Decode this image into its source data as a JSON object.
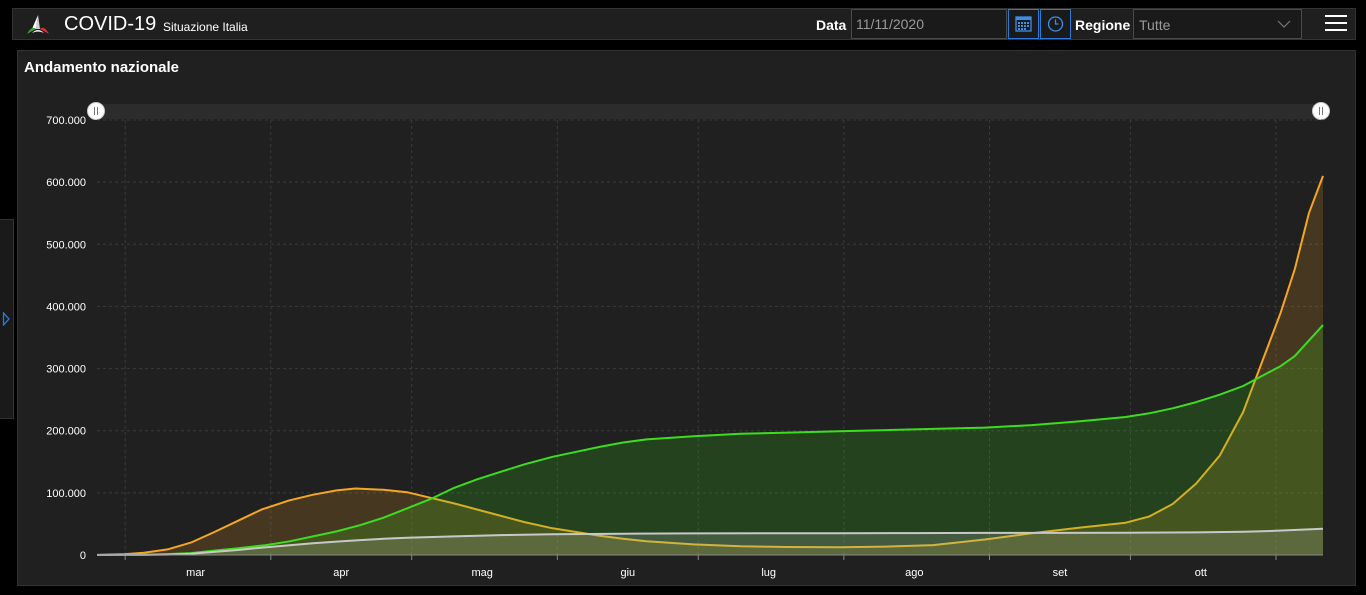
{
  "header": {
    "app_title": "COVID-19",
    "app_subtitle": "Situazione Italia",
    "date_label": "Data",
    "date_value": "11/11/2020",
    "region_label": "Regione",
    "region_value": "Tutte"
  },
  "icons": {
    "logo": "italy-tricolor-logo-icon",
    "calendar": "calendar-icon",
    "clock": "clock-icon",
    "dropdown": "chevron-down-icon",
    "menu": "hamburger-menu-icon",
    "side_toggle": "chevron-right-icon"
  },
  "colors": {
    "orange": "#f5a623",
    "green": "#3ddc1e",
    "gray": "#c8c8c8",
    "accent": "#2b7bd6"
  },
  "panel": {
    "title": "Andamento nazionale"
  },
  "chart_data": {
    "type": "area",
    "title": "",
    "xlabel": "",
    "ylabel": "",
    "ylim": [
      0,
      700000
    ],
    "yticks": [
      0,
      100000,
      200000,
      300000,
      400000,
      500000,
      600000,
      700000
    ],
    "ytick_labels": [
      "0",
      "100.000",
      "200.000",
      "300.000",
      "400.000",
      "500.000",
      "600.000",
      "700.000"
    ],
    "xlim": [
      "2020-02-24",
      "2020-11-11"
    ],
    "month_labels": [
      {
        "label": "mar",
        "date": "2020-03-16"
      },
      {
        "label": "apr",
        "date": "2020-04-16"
      },
      {
        "label": "mag",
        "date": "2020-05-16"
      },
      {
        "label": "giu",
        "date": "2020-06-16"
      },
      {
        "label": "lug",
        "date": "2020-07-16"
      },
      {
        "label": "ago",
        "date": "2020-08-16"
      },
      {
        "label": "set",
        "date": "2020-09-16"
      },
      {
        "label": "ott",
        "date": "2020-10-16"
      }
    ],
    "gridlines": [
      "2020-03-01",
      "2020-04-01",
      "2020-05-01",
      "2020-06-01",
      "2020-07-01",
      "2020-08-01",
      "2020-09-01",
      "2020-10-01",
      "2020-11-01"
    ],
    "grid": true,
    "legend": "none",
    "range_selector": true,
    "series": [
      {
        "color": "#f5a623",
        "points": [
          [
            "2020-02-24",
            200
          ],
          [
            "2020-03-01",
            1500
          ],
          [
            "2020-03-05",
            3500
          ],
          [
            "2020-03-10",
            9000
          ],
          [
            "2020-03-15",
            20000
          ],
          [
            "2020-03-20",
            37000
          ],
          [
            "2020-03-25",
            55000
          ],
          [
            "2020-03-30",
            73000
          ],
          [
            "2020-04-05",
            88000
          ],
          [
            "2020-04-10",
            97000
          ],
          [
            "2020-04-15",
            104000
          ],
          [
            "2020-04-19",
            107000
          ],
          [
            "2020-04-25",
            105000
          ],
          [
            "2020-04-30",
            101000
          ],
          [
            "2020-05-05",
            92000
          ],
          [
            "2020-05-10",
            83000
          ],
          [
            "2020-05-15",
            73000
          ],
          [
            "2020-05-20",
            63000
          ],
          [
            "2020-05-25",
            53000
          ],
          [
            "2020-05-31",
            43000
          ],
          [
            "2020-06-05",
            37000
          ],
          [
            "2020-06-10",
            31000
          ],
          [
            "2020-06-15",
            26000
          ],
          [
            "2020-06-20",
            22000
          ],
          [
            "2020-06-30",
            17000
          ],
          [
            "2020-07-10",
            14000
          ],
          [
            "2020-07-20",
            12800
          ],
          [
            "2020-07-31",
            12500
          ],
          [
            "2020-08-10",
            13500
          ],
          [
            "2020-08-20",
            16000
          ],
          [
            "2020-08-31",
            25000
          ],
          [
            "2020-09-10",
            35000
          ],
          [
            "2020-09-20",
            44000
          ],
          [
            "2020-09-30",
            52000
          ],
          [
            "2020-10-05",
            62000
          ],
          [
            "2020-10-10",
            82000
          ],
          [
            "2020-10-15",
            115000
          ],
          [
            "2020-10-20",
            160000
          ],
          [
            "2020-10-25",
            230000
          ],
          [
            "2020-10-30",
            330000
          ],
          [
            "2020-11-02",
            390000
          ],
          [
            "2020-11-05",
            460000
          ],
          [
            "2020-11-08",
            550000
          ],
          [
            "2020-11-11",
            610000
          ]
        ]
      },
      {
        "color": "#3ddc1e",
        "points": [
          [
            "2020-02-24",
            0
          ],
          [
            "2020-03-05",
            500
          ],
          [
            "2020-03-10",
            1500
          ],
          [
            "2020-03-15",
            3000
          ],
          [
            "2020-03-20",
            7000
          ],
          [
            "2020-03-25",
            11000
          ],
          [
            "2020-03-31",
            16000
          ],
          [
            "2020-04-05",
            22000
          ],
          [
            "2020-04-10",
            30000
          ],
          [
            "2020-04-15",
            38000
          ],
          [
            "2020-04-20",
            48000
          ],
          [
            "2020-04-25",
            60000
          ],
          [
            "2020-04-30",
            75000
          ],
          [
            "2020-05-05",
            90000
          ],
          [
            "2020-05-10",
            108000
          ],
          [
            "2020-05-15",
            122000
          ],
          [
            "2020-05-20",
            134000
          ],
          [
            "2020-05-25",
            146000
          ],
          [
            "2020-05-31",
            158000
          ],
          [
            "2020-06-05",
            166000
          ],
          [
            "2020-06-10",
            174000
          ],
          [
            "2020-06-15",
            181000
          ],
          [
            "2020-06-20",
            186000
          ],
          [
            "2020-06-30",
            191000
          ],
          [
            "2020-07-10",
            195000
          ],
          [
            "2020-07-20",
            197000
          ],
          [
            "2020-07-31",
            199000
          ],
          [
            "2020-08-10",
            201000
          ],
          [
            "2020-08-20",
            203000
          ],
          [
            "2020-08-31",
            205000
          ],
          [
            "2020-09-10",
            209000
          ],
          [
            "2020-09-20",
            215000
          ],
          [
            "2020-09-30",
            222000
          ],
          [
            "2020-10-05",
            228000
          ],
          [
            "2020-10-10",
            236000
          ],
          [
            "2020-10-15",
            246000
          ],
          [
            "2020-10-20",
            258000
          ],
          [
            "2020-10-25",
            272000
          ],
          [
            "2020-10-30",
            292000
          ],
          [
            "2020-11-02",
            304000
          ],
          [
            "2020-11-05",
            320000
          ],
          [
            "2020-11-08",
            345000
          ],
          [
            "2020-11-11",
            370000
          ]
        ]
      },
      {
        "color": "#c8c8c8",
        "points": [
          [
            "2020-02-24",
            0
          ],
          [
            "2020-03-05",
            150
          ],
          [
            "2020-03-10",
            700
          ],
          [
            "2020-03-15",
            2000
          ],
          [
            "2020-03-20",
            5000
          ],
          [
            "2020-03-25",
            8000
          ],
          [
            "2020-03-31",
            12500
          ],
          [
            "2020-04-05",
            15800
          ],
          [
            "2020-04-10",
            18800
          ],
          [
            "2020-04-15",
            21600
          ],
          [
            "2020-04-20",
            24000
          ],
          [
            "2020-04-25",
            26000
          ],
          [
            "2020-04-30",
            27700
          ],
          [
            "2020-05-10",
            30000
          ],
          [
            "2020-05-20",
            32000
          ],
          [
            "2020-05-31",
            33300
          ],
          [
            "2020-06-15",
            34300
          ],
          [
            "2020-06-30",
            34700
          ],
          [
            "2020-07-15",
            35000
          ],
          [
            "2020-07-31",
            35100
          ],
          [
            "2020-08-15",
            35300
          ],
          [
            "2020-08-31",
            35500
          ],
          [
            "2020-09-15",
            35600
          ],
          [
            "2020-09-30",
            35900
          ],
          [
            "2020-10-15",
            36400
          ],
          [
            "2020-10-25",
            37300
          ],
          [
            "2020-11-01",
            39000
          ],
          [
            "2020-11-06",
            40500
          ],
          [
            "2020-11-11",
            42300
          ]
        ]
      }
    ]
  }
}
